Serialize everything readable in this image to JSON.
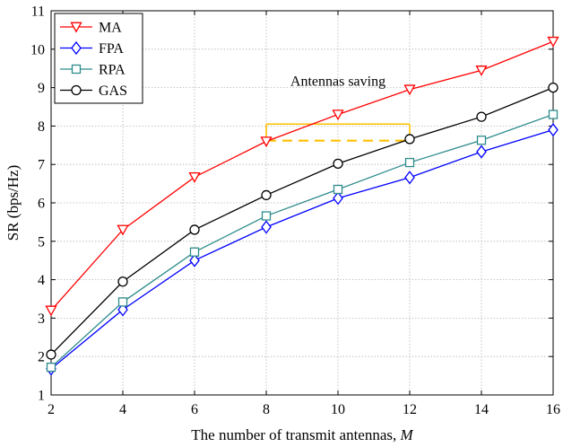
{
  "chart_data": {
    "type": "line",
    "xlabel": "The number of transmit antennas, ",
    "xlabel_var": "M",
    "ylabel": "SR (bps/Hz)",
    "xlim": [
      2,
      16
    ],
    "ylim": [
      1,
      11
    ],
    "xticks": [
      2,
      4,
      6,
      8,
      10,
      12,
      14,
      16
    ],
    "yticks": [
      1,
      2,
      3,
      4,
      5,
      6,
      7,
      8,
      9,
      10,
      11
    ],
    "grid": true,
    "legend_position": "top-left",
    "x": [
      2,
      4,
      6,
      8,
      10,
      12,
      14,
      16
    ],
    "series": [
      {
        "name": "MA",
        "values": [
          3.2,
          5.3,
          6.67,
          7.6,
          8.3,
          8.95,
          9.45,
          10.2
        ],
        "color": "#ff0000",
        "marker": "triangle-down"
      },
      {
        "name": "FPA",
        "values": [
          1.68,
          3.22,
          4.5,
          5.37,
          6.12,
          6.66,
          7.33,
          7.9
        ],
        "color": "#0000ff",
        "marker": "diamond"
      },
      {
        "name": "RPA",
        "values": [
          1.72,
          3.42,
          4.72,
          5.66,
          6.35,
          7.05,
          7.63,
          8.3
        ],
        "color": "#2e8b8b",
        "marker": "square"
      },
      {
        "name": "GAS",
        "values": [
          2.05,
          3.95,
          5.3,
          6.2,
          7.02,
          7.66,
          8.24,
          9.0
        ],
        "color": "#000000",
        "marker": "circle"
      }
    ],
    "annotation": {
      "text": "Antennas saving",
      "color": "#ffc000",
      "bracket": {
        "x_start": 8,
        "x_end": 12,
        "y_top": 8.05,
        "y_dashed": 7.62
      }
    }
  }
}
